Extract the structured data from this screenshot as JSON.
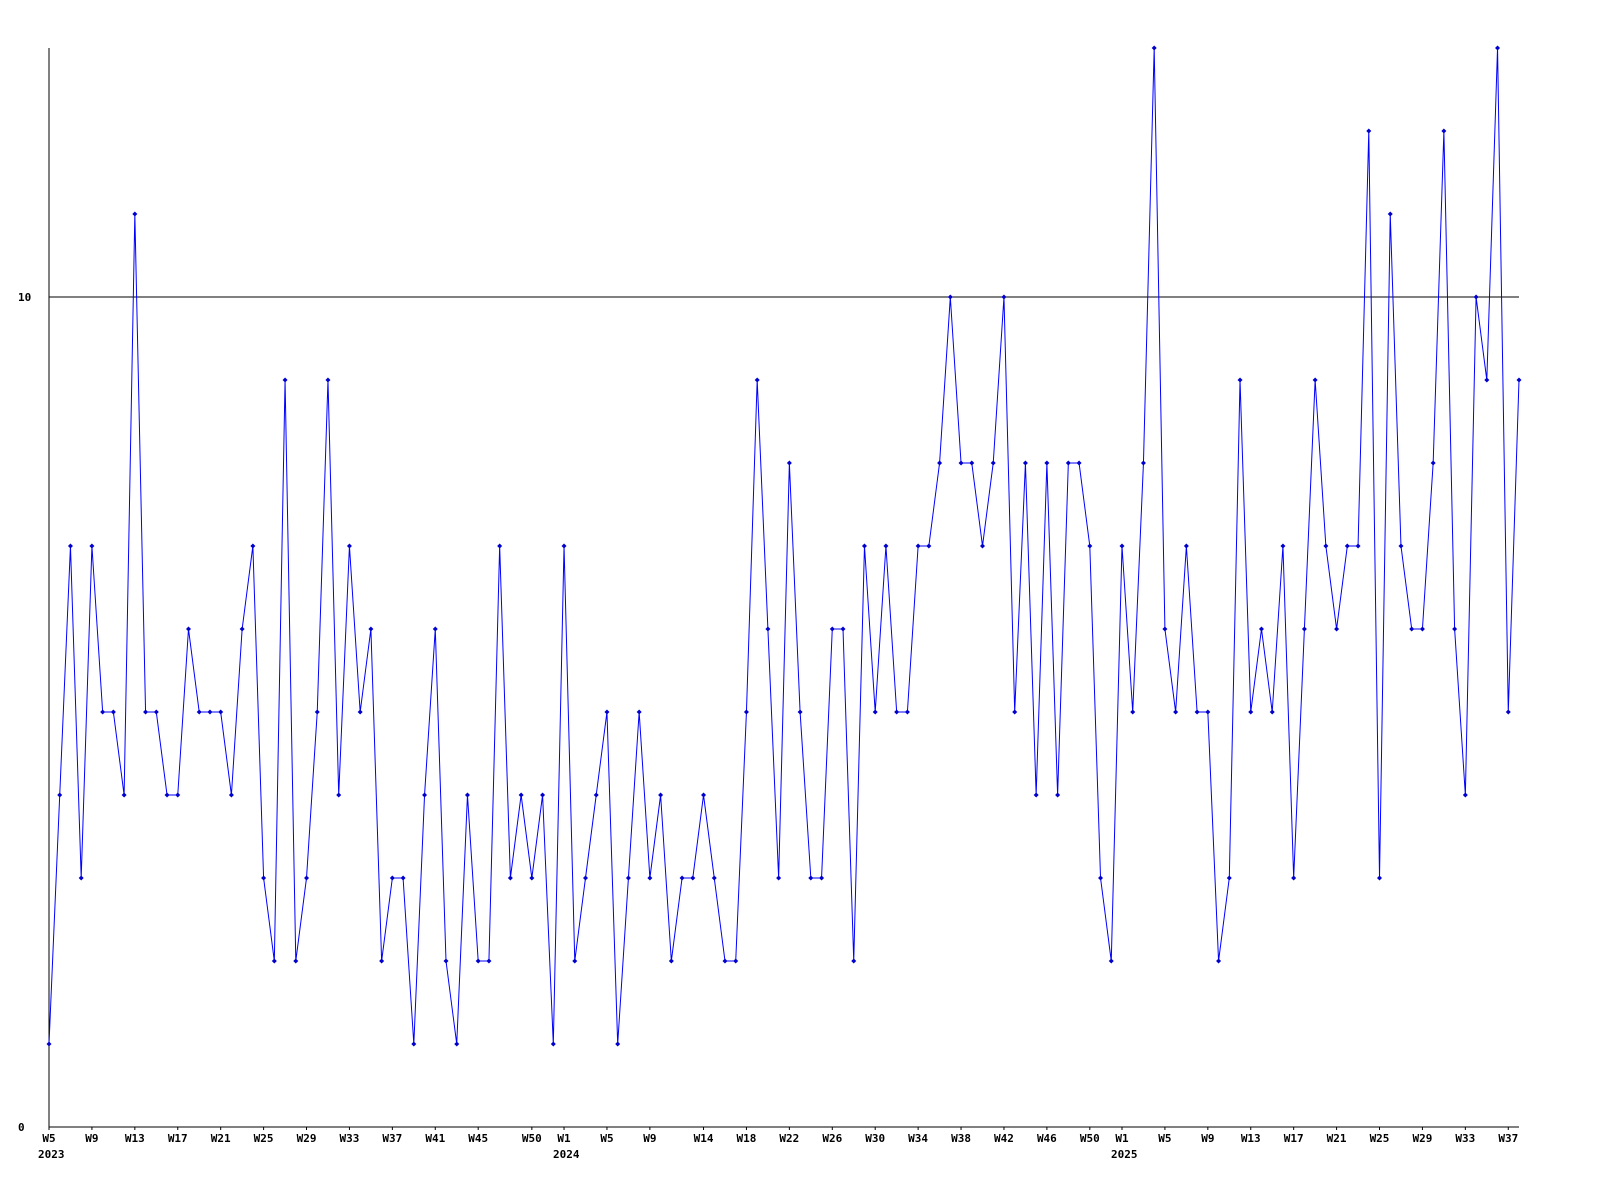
{
  "chart_data": {
    "type": "line",
    "categories": [
      "W5",
      null,
      null,
      null,
      "W9",
      null,
      null,
      null,
      "W13",
      null,
      null,
      null,
      "W17",
      null,
      null,
      null,
      "W21",
      null,
      null,
      null,
      "W25",
      null,
      null,
      null,
      "W29",
      null,
      null,
      null,
      "W33",
      null,
      null,
      null,
      "W37",
      null,
      null,
      null,
      "W41",
      null,
      null,
      null,
      "W45",
      null,
      null,
      null,
      null,
      "W50",
      null,
      null,
      "W1",
      null,
      null,
      null,
      "W5",
      null,
      null,
      null,
      "W9",
      null,
      null,
      null,
      null,
      "W14",
      null,
      null,
      null,
      "W18",
      null,
      null,
      null,
      "W22",
      null,
      null,
      null,
      "W26",
      null,
      null,
      null,
      "W30",
      null,
      null,
      null,
      "W34",
      null,
      null,
      null,
      "W38",
      null,
      null,
      null,
      "W42",
      null,
      null,
      null,
      "W46",
      null,
      null,
      null,
      "W50",
      null,
      null,
      "W1",
      null,
      null,
      null,
      "W5",
      null,
      null,
      null,
      "W9",
      null,
      null,
      null,
      "W13",
      null,
      null,
      null,
      "W17",
      null,
      null,
      null,
      "W21",
      null,
      null,
      null,
      "W25",
      null,
      null,
      null,
      "W29",
      null,
      null,
      null,
      "W33",
      null,
      null,
      null,
      "W37",
      null
    ],
    "years": [
      "2023",
      null,
      null,
      null,
      null,
      null,
      null,
      null,
      null,
      null,
      null,
      null,
      null,
      null,
      null,
      null,
      null,
      null,
      null,
      null,
      null,
      null,
      null,
      null,
      null,
      null,
      null,
      null,
      null,
      null,
      null,
      null,
      null,
      null,
      null,
      null,
      null,
      null,
      null,
      null,
      null,
      null,
      null,
      null,
      null,
      null,
      null,
      null,
      "2024",
      null,
      null,
      null,
      null,
      null,
      null,
      null,
      null,
      null,
      null,
      null,
      null,
      null,
      null,
      null,
      null,
      null,
      null,
      null,
      null,
      null,
      null,
      null,
      null,
      null,
      null,
      null,
      null,
      null,
      null,
      null,
      null,
      null,
      null,
      null,
      null,
      null,
      null,
      null,
      null,
      null,
      null,
      null,
      null,
      null,
      null,
      null,
      null,
      null,
      null,
      null,
      "2025",
      null,
      null,
      null,
      null,
      null,
      null,
      null,
      null,
      null,
      null,
      null,
      null,
      null,
      null,
      null,
      null,
      null,
      null,
      null,
      null,
      null,
      null,
      null,
      null,
      null,
      null,
      null,
      null,
      null,
      null,
      null,
      null,
      null,
      null,
      null,
      null,
      null
    ],
    "series": [
      {
        "color": "#0000ff",
        "values": [
          1,
          4,
          7,
          3,
          7,
          5,
          5,
          4,
          11,
          5,
          5,
          4,
          4,
          6,
          5,
          5,
          5,
          4,
          6,
          7,
          3,
          2,
          9,
          2,
          3,
          5,
          9,
          4,
          7,
          5,
          6,
          2,
          3,
          3,
          1,
          4,
          6,
          2,
          1,
          4,
          2,
          2,
          7,
          3,
          4,
          3,
          4,
          1,
          7,
          2,
          3,
          4,
          5,
          1,
          3,
          5,
          3,
          4,
          2,
          3,
          3,
          4,
          3,
          2,
          2,
          5,
          9,
          6,
          3,
          8,
          5,
          3,
          3,
          6,
          6,
          2,
          7,
          5,
          7,
          5,
          5,
          7,
          7,
          8,
          10,
          8,
          8,
          7,
          8,
          10,
          5,
          8,
          4,
          8,
          4,
          8,
          8,
          7,
          3,
          2,
          7,
          5,
          8,
          13,
          6,
          5,
          7,
          5,
          5,
          2,
          3,
          9,
          5,
          6,
          5,
          7,
          3,
          6,
          9,
          7,
          6,
          7,
          7,
          12,
          3,
          11,
          7,
          6,
          6,
          8,
          12,
          6,
          4,
          10,
          9,
          13,
          5,
          9
        ]
      }
    ],
    "ylim": [
      0,
      13
    ],
    "yticks": [
      0,
      10
    ],
    "grid": true
  }
}
